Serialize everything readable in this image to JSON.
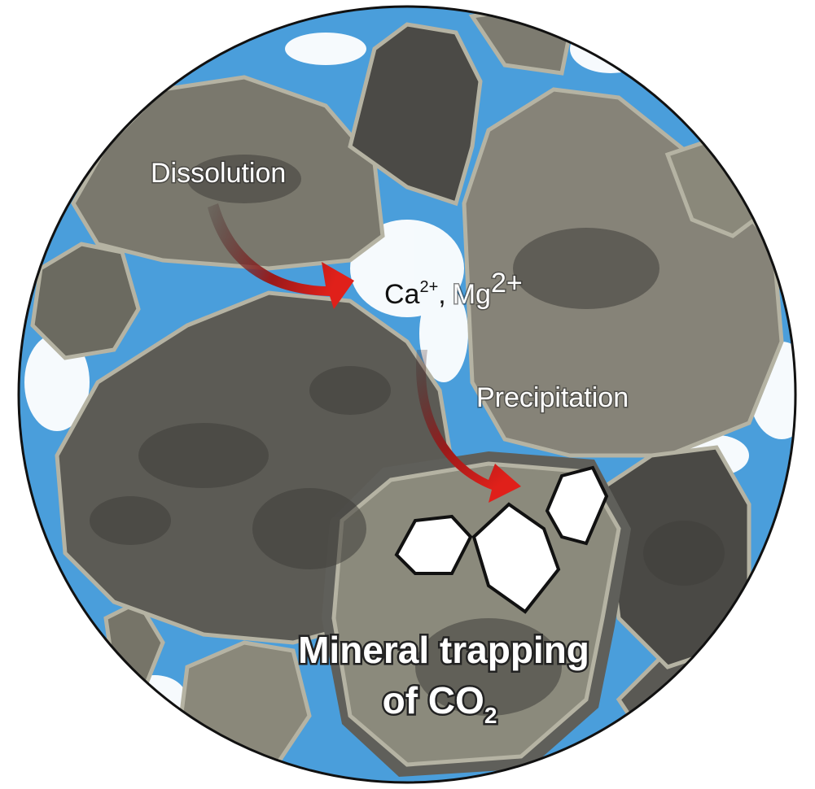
{
  "labels": {
    "dissolution": "Dissolution",
    "ions": [
      {
        "symbol": "Ca",
        "charge": "2+"
      },
      {
        "symbol": "Mg",
        "charge": "2+"
      }
    ],
    "separator": ",",
    "precipitation": "Precipitation",
    "trapping": {
      "line1": "Mineral trapping",
      "line2": "of CO",
      "subscript": "2"
    }
  }
}
